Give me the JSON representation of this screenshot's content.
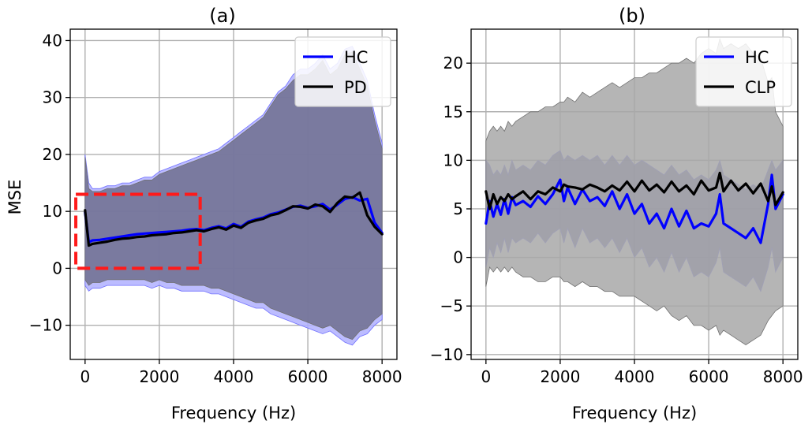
{
  "chart_data": [
    {
      "id": "a",
      "type": "line",
      "title": "(a)",
      "xlabel": "Frequency (Hz)",
      "ylabel": "MSE",
      "xlim": [
        -400,
        8400
      ],
      "ylim": [
        -16,
        42
      ],
      "xticks": [
        0,
        2000,
        4000,
        6000,
        8000
      ],
      "xtick_labels": [
        "0",
        "2000",
        "4000",
        "6000",
        "8000"
      ],
      "yticks": [
        -10,
        0,
        10,
        20,
        30,
        40
      ],
      "ytick_labels": [
        "−10",
        "0",
        "10",
        "20",
        "30",
        "40"
      ],
      "grid": true,
      "legend_position": "top-right",
      "highlight_box": {
        "x0": -250,
        "x1": 3100,
        "y0": 0,
        "y1": 13,
        "color": "#ff1a1a",
        "style": "dashed"
      },
      "x": [
        0,
        100,
        200,
        400,
        600,
        800,
        1000,
        1200,
        1400,
        1600,
        1800,
        2000,
        2200,
        2400,
        2600,
        2800,
        3000,
        3200,
        3400,
        3600,
        3800,
        4000,
        4200,
        4400,
        4600,
        4800,
        5000,
        5200,
        5400,
        5600,
        5800,
        6000,
        6200,
        6400,
        6600,
        6800,
        7000,
        7200,
        7400,
        7600,
        7800,
        8000
      ],
      "series": [
        {
          "name": "HC",
          "color": "#0000ff",
          "values": [
            9.8,
            4.6,
            4.9,
            5.0,
            5.2,
            5.4,
            5.6,
            5.8,
            6.0,
            6.1,
            6.2,
            6.3,
            6.4,
            6.5,
            6.6,
            6.8,
            6.9,
            6.7,
            7.1,
            7.4,
            7.0,
            7.8,
            7.3,
            8.2,
            8.6,
            8.9,
            9.5,
            9.8,
            10.3,
            10.8,
            11.0,
            10.6,
            10.9,
            11.3,
            10.3,
            11.2,
            12.2,
            12.5,
            11.9,
            12.2,
            8.0,
            6.2
          ],
          "band_upper": [
            20.0,
            15.0,
            14.0,
            14.0,
            14.5,
            14.5,
            15.0,
            15.0,
            15.5,
            16.0,
            16.0,
            17.0,
            17.5,
            18.0,
            18.5,
            19.0,
            19.5,
            20.0,
            20.5,
            21.0,
            22.0,
            23.0,
            24.0,
            25.0,
            26.0,
            27.0,
            29.0,
            31.0,
            32.0,
            34.0,
            35.0,
            35.0,
            36.0,
            37.5,
            35.0,
            36.0,
            38.5,
            39.0,
            36.0,
            33.0,
            27.0,
            22.0
          ],
          "band_lower": [
            -3.0,
            -4.0,
            -3.5,
            -3.5,
            -3.0,
            -3.0,
            -3.0,
            -3.0,
            -3.0,
            -3.0,
            -3.5,
            -3.0,
            -3.5,
            -3.5,
            -4.0,
            -4.0,
            -4.0,
            -4.0,
            -4.5,
            -4.5,
            -5.0,
            -5.5,
            -6.0,
            -6.5,
            -7.0,
            -7.0,
            -8.0,
            -8.5,
            -9.0,
            -9.5,
            -10.0,
            -10.5,
            -11.0,
            -11.5,
            -11.0,
            -12.0,
            -13.0,
            -13.5,
            -12.0,
            -11.5,
            -10.0,
            -9.0
          ],
          "band_color": "#b0b0ff"
        },
        {
          "name": "PD",
          "color": "#000000",
          "values": [
            10.2,
            4.0,
            4.3,
            4.5,
            4.7,
            5.0,
            5.2,
            5.3,
            5.5,
            5.6,
            5.8,
            5.9,
            6.0,
            6.2,
            6.3,
            6.5,
            6.7,
            6.5,
            6.9,
            7.2,
            6.8,
            7.5,
            7.1,
            8.0,
            8.4,
            8.7,
            9.3,
            9.6,
            10.2,
            10.9,
            10.8,
            10.5,
            11.2,
            10.9,
            9.9,
            11.5,
            12.6,
            12.4,
            13.3,
            9.3,
            7.3,
            6.0
          ],
          "band_upper": [
            19.5,
            14.0,
            13.5,
            13.5,
            14.0,
            14.0,
            14.5,
            14.5,
            15.0,
            15.5,
            15.5,
            16.5,
            17.0,
            17.5,
            18.0,
            18.5,
            19.0,
            19.5,
            20.0,
            20.5,
            21.5,
            22.5,
            23.5,
            24.5,
            25.5,
            26.5,
            28.5,
            30.5,
            31.5,
            33.0,
            34.0,
            34.0,
            35.0,
            36.5,
            34.0,
            35.0,
            37.5,
            38.0,
            35.0,
            32.0,
            26.0,
            21.0
          ],
          "band_lower": [
            -2.0,
            -3.0,
            -2.5,
            -2.5,
            -2.0,
            -2.0,
            -2.0,
            -2.0,
            -2.0,
            -2.0,
            -2.5,
            -2.0,
            -2.5,
            -2.5,
            -3.0,
            -3.0,
            -3.0,
            -3.0,
            -3.5,
            -3.5,
            -4.0,
            -4.5,
            -5.0,
            -5.5,
            -6.0,
            -6.0,
            -7.0,
            -7.5,
            -8.0,
            -8.5,
            -9.0,
            -9.5,
            -10.0,
            -10.5,
            -10.0,
            -11.0,
            -12.0,
            -12.5,
            -11.0,
            -10.5,
            -9.0,
            -8.0
          ],
          "band_color": "#6e6e8e"
        }
      ]
    },
    {
      "id": "b",
      "type": "line",
      "title": "(b)",
      "xlabel": "Frequency (Hz)",
      "ylabel": "",
      "xlim": [
        -400,
        8400
      ],
      "ylim": [
        -10.5,
        23.5
      ],
      "xticks": [
        0,
        2000,
        4000,
        6000,
        8000
      ],
      "xtick_labels": [
        "0",
        "2000",
        "4000",
        "6000",
        "8000"
      ],
      "yticks": [
        -10,
        -5,
        0,
        5,
        10,
        15,
        20
      ],
      "ytick_labels": [
        "−10",
        "−5",
        "0",
        "5",
        "10",
        "15",
        "20"
      ],
      "grid": true,
      "legend_position": "top-right",
      "x": [
        0,
        100,
        200,
        300,
        400,
        500,
        600,
        700,
        800,
        1000,
        1200,
        1400,
        1600,
        1800,
        2000,
        2100,
        2200,
        2400,
        2600,
        2800,
        3000,
        3200,
        3400,
        3600,
        3800,
        4000,
        4200,
        4400,
        4600,
        4800,
        5000,
        5200,
        5400,
        5600,
        5800,
        6000,
        6200,
        6300,
        6400,
        6600,
        6800,
        7000,
        7200,
        7400,
        7600,
        7700,
        7800,
        8000
      ],
      "series": [
        {
          "name": "HC",
          "color": "#0000ff",
          "values": [
            3.5,
            5.8,
            4.2,
            5.5,
            4.4,
            6.0,
            4.5,
            6.2,
            5.4,
            5.8,
            5.2,
            6.3,
            5.5,
            6.5,
            8.0,
            5.8,
            7.2,
            5.5,
            7.0,
            5.8,
            6.2,
            5.3,
            6.8,
            5.0,
            6.5,
            4.5,
            5.5,
            3.5,
            4.5,
            3.0,
            5.0,
            3.2,
            4.8,
            3.0,
            3.5,
            3.2,
            4.5,
            6.5,
            3.5,
            3.0,
            2.5,
            2.0,
            3.0,
            1.5,
            5.5,
            8.5,
            5.0,
            6.5
          ],
          "band_upper": [
            10.0,
            9.5,
            8.5,
            9.0,
            8.5,
            9.5,
            8.5,
            10.0,
            9.0,
            9.5,
            9.0,
            10.0,
            9.5,
            10.5,
            11.0,
            10.0,
            10.5,
            10.0,
            10.5,
            10.0,
            10.5,
            9.5,
            10.5,
            9.5,
            10.5,
            9.5,
            10.0,
            9.5,
            9.0,
            8.5,
            9.5,
            8.5,
            9.0,
            8.0,
            8.5,
            8.0,
            9.0,
            10.0,
            8.5,
            8.0,
            7.5,
            7.0,
            7.5,
            7.0,
            9.0,
            10.0,
            9.0,
            10.0
          ],
          "band_lower": [
            -1.0,
            1.0,
            0.0,
            1.5,
            0.5,
            2.0,
            0.5,
            2.0,
            1.5,
            2.0,
            1.5,
            2.5,
            1.5,
            2.5,
            3.0,
            1.5,
            3.0,
            1.0,
            3.0,
            1.5,
            2.0,
            1.0,
            2.0,
            0.5,
            2.0,
            0.0,
            1.0,
            -1.0,
            0.0,
            -1.5,
            0.5,
            -1.5,
            0.0,
            -2.0,
            -1.5,
            -2.0,
            -0.5,
            1.0,
            -1.5,
            -2.0,
            -2.5,
            -3.0,
            -2.0,
            -3.5,
            -1.0,
            1.0,
            -1.5,
            0.0
          ],
          "band_color": "#6a6aa8"
        },
        {
          "name": "CLP",
          "color": "#000000",
          "values": [
            6.8,
            5.0,
            6.5,
            5.5,
            6.2,
            5.8,
            6.5,
            6.0,
            6.3,
            6.8,
            6.0,
            6.8,
            6.5,
            7.2,
            6.8,
            7.5,
            7.3,
            7.2,
            7.0,
            7.5,
            7.2,
            6.8,
            7.4,
            6.9,
            7.8,
            6.8,
            7.9,
            6.9,
            7.5,
            6.7,
            7.8,
            6.8,
            7.4,
            6.5,
            7.9,
            6.9,
            7.2,
            8.7,
            6.8,
            7.9,
            6.9,
            7.6,
            6.6,
            7.6,
            5.8,
            7.3,
            5.4,
            6.7
          ],
          "band_upper": [
            12.0,
            13.0,
            13.5,
            13.0,
            13.5,
            13.0,
            14.0,
            13.5,
            14.0,
            14.5,
            15.0,
            15.0,
            15.5,
            15.5,
            16.0,
            16.0,
            16.5,
            16.0,
            17.0,
            16.5,
            17.0,
            17.5,
            18.0,
            17.5,
            18.0,
            18.5,
            18.5,
            19.0,
            19.0,
            19.5,
            20.0,
            20.0,
            20.5,
            20.0,
            21.0,
            21.5,
            21.0,
            22.5,
            21.5,
            22.0,
            21.5,
            22.0,
            21.0,
            20.5,
            18.0,
            18.5,
            15.0,
            13.5
          ],
          "band_lower": [
            -3.0,
            -1.0,
            -1.5,
            -1.0,
            -1.5,
            -1.0,
            -1.5,
            -1.0,
            -1.5,
            -2.0,
            -2.0,
            -2.5,
            -2.5,
            -2.0,
            -2.0,
            -2.5,
            -2.5,
            -3.0,
            -2.5,
            -3.0,
            -3.0,
            -3.5,
            -3.5,
            -4.0,
            -4.0,
            -4.0,
            -4.5,
            -5.0,
            -5.5,
            -5.0,
            -6.0,
            -6.5,
            -6.0,
            -7.0,
            -7.0,
            -7.5,
            -7.0,
            -8.0,
            -7.5,
            -8.0,
            -8.5,
            -9.0,
            -8.5,
            -8.0,
            -6.5,
            -6.0,
            -5.5,
            -5.0
          ],
          "band_color": "#a8a8a8"
        }
      ]
    }
  ]
}
